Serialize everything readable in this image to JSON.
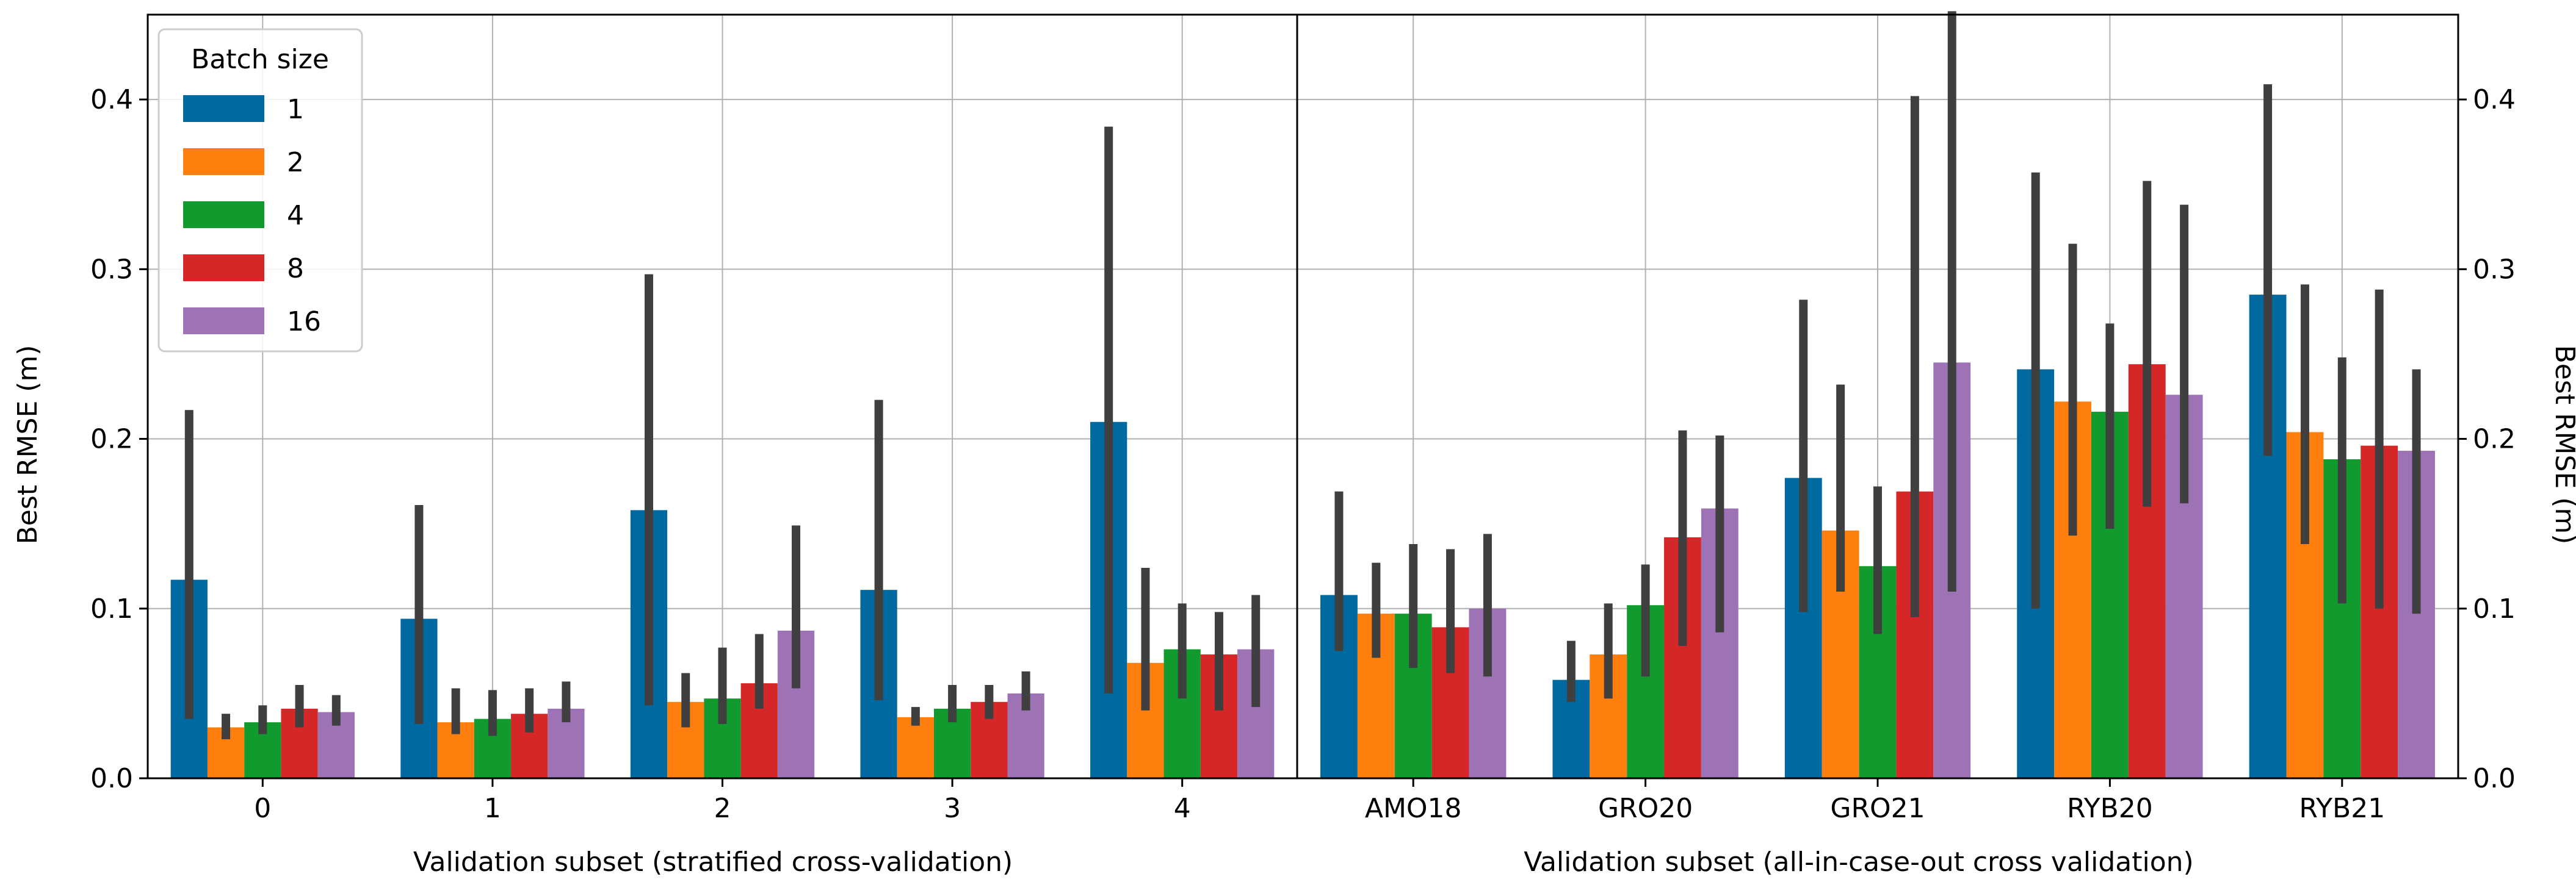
{
  "legend": {
    "title": "Batch size",
    "placement": "upper-left"
  },
  "colors": {
    "1": "#0069a0",
    "2": "#ff7f0e",
    "4": "#119a2e",
    "8": "#d62728",
    "16": "#9e73b6",
    "errorbar": "#3f3f3f",
    "grid": "#b0b0b0"
  },
  "chart_data": [
    {
      "type": "bar",
      "xlabel": "Validation subset (stratified cross-validation)",
      "ylabel": "Best RMSE (m)",
      "ylim": [
        0,
        0.45
      ],
      "yticks": [
        "0.0",
        "0.1",
        "0.2",
        "0.3",
        "0.4"
      ],
      "grid": true,
      "categories": [
        "0",
        "1",
        "2",
        "3",
        "4"
      ],
      "series": [
        {
          "name": "1",
          "values": [
            0.117,
            0.094,
            0.158,
            0.111,
            0.21
          ],
          "err_low": [
            0.035,
            0.032,
            0.043,
            0.046,
            0.05
          ],
          "err_high": [
            0.217,
            0.161,
            0.297,
            0.223,
            0.384
          ]
        },
        {
          "name": "2",
          "values": [
            0.03,
            0.033,
            0.045,
            0.036,
            0.068
          ],
          "err_low": [
            0.023,
            0.026,
            0.03,
            0.031,
            0.04
          ],
          "err_high": [
            0.038,
            0.053,
            0.062,
            0.042,
            0.124
          ]
        },
        {
          "name": "4",
          "values": [
            0.033,
            0.035,
            0.047,
            0.041,
            0.076
          ],
          "err_low": [
            0.026,
            0.025,
            0.032,
            0.033,
            0.047
          ],
          "err_high": [
            0.043,
            0.052,
            0.077,
            0.055,
            0.103
          ]
        },
        {
          "name": "8",
          "values": [
            0.041,
            0.038,
            0.056,
            0.045,
            0.073
          ],
          "err_low": [
            0.03,
            0.027,
            0.041,
            0.035,
            0.04
          ],
          "err_high": [
            0.055,
            0.053,
            0.085,
            0.055,
            0.098
          ]
        },
        {
          "name": "16",
          "values": [
            0.039,
            0.041,
            0.087,
            0.05,
            0.076
          ],
          "err_low": [
            0.031,
            0.033,
            0.053,
            0.04,
            0.042
          ],
          "err_high": [
            0.049,
            0.057,
            0.149,
            0.063,
            0.108
          ]
        }
      ]
    },
    {
      "type": "bar",
      "xlabel": "Validation subset (all-in-case-out cross validation)",
      "ylabel": "Best RMSE (m)",
      "ylim": [
        0,
        0.45
      ],
      "yticks": [
        "0.0",
        "0.1",
        "0.2",
        "0.3",
        "0.4"
      ],
      "grid": true,
      "categories": [
        "AMO18",
        "GRO20",
        "GRO21",
        "RYB20",
        "RYB21"
      ],
      "series": [
        {
          "name": "1",
          "values": [
            0.108,
            0.058,
            0.177,
            0.241,
            0.285
          ],
          "err_low": [
            0.075,
            0.045,
            0.098,
            0.1,
            0.19
          ],
          "err_high": [
            0.169,
            0.081,
            0.282,
            0.357,
            0.409
          ]
        },
        {
          "name": "2",
          "values": [
            0.097,
            0.073,
            0.146,
            0.222,
            0.204
          ],
          "err_low": [
            0.071,
            0.047,
            0.11,
            0.143,
            0.138
          ],
          "err_high": [
            0.127,
            0.103,
            0.232,
            0.315,
            0.291
          ]
        },
        {
          "name": "4",
          "values": [
            0.097,
            0.102,
            0.125,
            0.216,
            0.188
          ],
          "err_low": [
            0.065,
            0.06,
            0.085,
            0.147,
            0.103
          ],
          "err_high": [
            0.138,
            0.126,
            0.172,
            0.268,
            0.248
          ]
        },
        {
          "name": "8",
          "values": [
            0.089,
            0.142,
            0.169,
            0.244,
            0.196
          ],
          "err_low": [
            0.062,
            0.078,
            0.095,
            0.16,
            0.1
          ],
          "err_high": [
            0.135,
            0.205,
            0.402,
            0.352,
            0.288
          ]
        },
        {
          "name": "16",
          "values": [
            0.1,
            0.159,
            0.245,
            0.226,
            0.193
          ],
          "err_low": [
            0.06,
            0.086,
            0.11,
            0.162,
            0.097
          ],
          "err_high": [
            0.144,
            0.202,
            0.452,
            0.338,
            0.241
          ]
        }
      ]
    }
  ]
}
